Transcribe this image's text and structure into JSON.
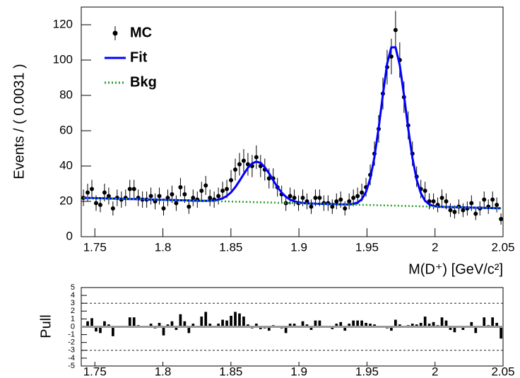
{
  "chart_data": [
    {
      "type": "scatter",
      "y_label": "Events / ( 0.0031 )",
      "x_label": "M(D⁺) [GeV/c²]",
      "xlim": [
        1.74,
        2.05
      ],
      "ylim": [
        0,
        130
      ],
      "xticks": [
        1.75,
        1.8,
        1.85,
        1.9,
        1.95,
        2,
        2.05
      ],
      "yticks": [
        0,
        20,
        40,
        60,
        80,
        100,
        120
      ],
      "legend": "upper left",
      "x": [
        1.7416,
        1.7447,
        1.7478,
        1.7509,
        1.754,
        1.7571,
        1.7602,
        1.7633,
        1.7664,
        1.7695,
        1.7726,
        1.7757,
        1.7788,
        1.7819,
        1.785,
        1.7881,
        1.7912,
        1.7943,
        1.7974,
        1.8005,
        1.8036,
        1.8067,
        1.8098,
        1.8129,
        1.816,
        1.8191,
        1.8222,
        1.8253,
        1.8284,
        1.8315,
        1.8346,
        1.8377,
        1.8408,
        1.8439,
        1.847,
        1.8501,
        1.8532,
        1.8563,
        1.8594,
        1.8625,
        1.8656,
        1.8687,
        1.8718,
        1.8749,
        1.878,
        1.8811,
        1.8842,
        1.8873,
        1.8904,
        1.8935,
        1.8966,
        1.8997,
        1.9028,
        1.9059,
        1.909,
        1.9121,
        1.9152,
        1.9183,
        1.9214,
        1.9245,
        1.9276,
        1.9307,
        1.9338,
        1.9369,
        1.94,
        1.9431,
        1.9462,
        1.9493,
        1.9524,
        1.9555,
        1.9586,
        1.9617,
        1.9648,
        1.9679,
        1.971,
        1.9741,
        1.9772,
        1.9803,
        1.9834,
        1.9865,
        1.9896,
        1.9927,
        1.9958,
        1.9989,
        2.002,
        2.0051,
        2.0082,
        2.0113,
        2.0144,
        2.0175,
        2.0206,
        2.0237,
        2.0268,
        2.0299,
        2.033,
        2.0361,
        2.0392,
        2.0423,
        2.0454,
        2.0485
      ],
      "series": [
        {
          "name": "MC",
          "color": "#000000",
          "style": "points",
          "values": [
            22,
            25,
            27,
            19,
            18,
            25,
            23,
            16,
            22,
            21,
            22,
            27,
            27,
            22,
            21,
            21,
            23,
            20,
            23,
            16,
            22,
            24,
            19,
            28,
            24,
            17,
            22,
            21,
            26,
            29,
            22,
            21,
            23,
            26,
            27,
            32,
            38,
            41,
            43,
            41,
            40,
            45,
            40,
            38,
            33,
            33,
            28,
            24,
            19,
            23,
            22,
            19,
            22,
            20,
            17,
            22,
            22,
            19,
            19,
            17,
            20,
            21,
            16,
            20,
            22,
            23,
            25,
            28,
            35,
            47,
            61,
            81,
            96,
            102,
            117,
            100,
            79,
            63,
            47,
            34,
            27,
            26,
            20,
            20,
            18,
            22,
            20,
            15,
            14,
            17,
            15,
            16,
            19,
            13,
            16,
            21,
            17,
            21,
            18,
            10
          ],
          "errors": [
            4.7,
            5.0,
            5.2,
            4.4,
            4.2,
            5.0,
            4.8,
            4.0,
            4.7,
            4.6,
            4.7,
            5.2,
            5.2,
            4.7,
            4.6,
            4.6,
            4.8,
            4.5,
            4.8,
            4.0,
            4.7,
            4.9,
            4.4,
            5.3,
            4.9,
            4.1,
            4.7,
            4.6,
            5.1,
            5.4,
            4.7,
            4.6,
            4.8,
            5.1,
            5.2,
            5.7,
            6.2,
            6.4,
            6.6,
            6.4,
            6.3,
            6.7,
            6.3,
            6.2,
            5.7,
            5.7,
            5.3,
            4.9,
            4.4,
            4.8,
            4.7,
            4.4,
            4.7,
            4.5,
            4.1,
            4.7,
            4.7,
            4.4,
            4.4,
            4.1,
            4.5,
            4.6,
            4.0,
            4.5,
            4.7,
            4.8,
            5.0,
            5.3,
            5.9,
            6.9,
            7.8,
            9.0,
            9.8,
            10.1,
            10.8,
            10.0,
            8.9,
            7.9,
            6.9,
            5.8,
            5.2,
            5.1,
            4.5,
            4.5,
            4.2,
            4.7,
            4.5,
            3.9,
            3.7,
            4.1,
            3.9,
            4.0,
            4.4,
            3.6,
            4.0,
            4.6,
            4.1,
            4.6,
            4.2,
            3.2
          ]
        },
        {
          "name": "Fit",
          "color": "#0000ff",
          "style": "solid",
          "values": [
            22.0,
            21.9,
            21.9,
            21.8,
            21.8,
            21.7,
            21.6,
            21.6,
            21.5,
            21.5,
            21.4,
            21.3,
            21.3,
            21.2,
            21.2,
            21.1,
            21.0,
            21.0,
            20.9,
            20.9,
            20.8,
            20.7,
            20.7,
            20.6,
            20.6,
            20.5,
            20.4,
            20.4,
            20.3,
            20.3,
            20.4,
            20.5,
            21.0,
            21.7,
            23.1,
            25.1,
            28.0,
            31.6,
            35.4,
            39.0,
            41.5,
            42.5,
            41.8,
            39.3,
            35.9,
            31.9,
            28.1,
            25.0,
            22.6,
            21.0,
            20.0,
            19.4,
            19.1,
            18.8,
            18.8,
            18.7,
            18.6,
            18.6,
            18.5,
            18.5,
            18.4,
            18.3,
            18.3,
            18.2,
            18.6,
            19.3,
            21.2,
            25.4,
            32.9,
            45.2,
            61.7,
            80.4,
            97.9,
            107.2,
            107.2,
            97.1,
            80.1,
            61.2,
            44.6,
            32.3,
            24.6,
            20.3,
            18.3,
            17.4,
            17.0,
            16.9,
            16.8,
            16.8,
            16.7,
            16.7,
            16.6,
            16.5,
            16.5,
            16.4,
            16.4,
            16.3,
            16.2,
            16.2,
            16.1,
            16.1
          ]
        },
        {
          "name": "Bkg",
          "color": "#22a022",
          "style": "dotted",
          "values": [
            22.0,
            21.9,
            21.9,
            21.8,
            21.8,
            21.7,
            21.6,
            21.6,
            21.5,
            21.5,
            21.4,
            21.3,
            21.3,
            21.2,
            21.2,
            21.1,
            21.0,
            21.0,
            20.9,
            20.9,
            20.8,
            20.7,
            20.7,
            20.6,
            20.6,
            20.5,
            20.4,
            20.4,
            20.3,
            20.3,
            20.2,
            20.1,
            20.1,
            20.0,
            20.0,
            19.9,
            19.8,
            19.8,
            19.7,
            19.7,
            19.6,
            19.5,
            19.5,
            19.4,
            19.4,
            19.3,
            19.2,
            19.2,
            19.1,
            19.1,
            19.0,
            18.9,
            18.9,
            18.8,
            18.8,
            18.7,
            18.6,
            18.6,
            18.5,
            18.5,
            18.4,
            18.3,
            18.3,
            18.2,
            18.2,
            18.1,
            18.0,
            18.0,
            17.9,
            17.9,
            17.8,
            17.7,
            17.7,
            17.6,
            17.6,
            17.5,
            17.4,
            17.4,
            17.3,
            17.3,
            17.2,
            17.1,
            17.1,
            17.0,
            17.0,
            16.9,
            16.8,
            16.8,
            16.7,
            16.7,
            16.6,
            16.5,
            16.5,
            16.4,
            16.4,
            16.3,
            16.2,
            16.2,
            16.1,
            16.1
          ]
        }
      ]
    },
    {
      "type": "bar",
      "y_label": "Pull",
      "color": "#000000",
      "xlim": [
        1.74,
        2.05
      ],
      "ylim": [
        -5,
        5
      ],
      "xticks": [
        1.75,
        1.8,
        1.85,
        1.9,
        1.95,
        2,
        2.05
      ],
      "yticks": [
        -5,
        -4,
        -3,
        -2,
        -1,
        0,
        1,
        2,
        3,
        4,
        5
      ],
      "hlines": [
        -3,
        3
      ],
      "x": [
        1.7416,
        1.7447,
        1.7478,
        1.7509,
        1.754,
        1.7571,
        1.7602,
        1.7633,
        1.7664,
        1.7695,
        1.7726,
        1.7757,
        1.7788,
        1.7819,
        1.785,
        1.7881,
        1.7912,
        1.7943,
        1.7974,
        1.8005,
        1.8036,
        1.8067,
        1.8098,
        1.8129,
        1.816,
        1.8191,
        1.8222,
        1.8253,
        1.8284,
        1.8315,
        1.8346,
        1.8377,
        1.8408,
        1.8439,
        1.847,
        1.8501,
        1.8532,
        1.8563,
        1.8594,
        1.8625,
        1.8656,
        1.8687,
        1.8718,
        1.8749,
        1.878,
        1.8811,
        1.8842,
        1.8873,
        1.8904,
        1.8935,
        1.8966,
        1.8997,
        1.9028,
        1.9059,
        1.909,
        1.9121,
        1.9152,
        1.9183,
        1.9214,
        1.9245,
        1.9276,
        1.9307,
        1.9338,
        1.9369,
        1.94,
        1.9431,
        1.9462,
        1.9493,
        1.9524,
        1.9555,
        1.9586,
        1.9617,
        1.9648,
        1.9679,
        1.971,
        1.9741,
        1.9772,
        1.9803,
        1.9834,
        1.9865,
        1.9896,
        1.9927,
        1.9958,
        1.9989,
        2.002,
        2.0051,
        2.0082,
        2.0113,
        2.0144,
        2.0175,
        2.0206,
        2.0237,
        2.0268,
        2.0299,
        2.033,
        2.0361,
        2.0392,
        2.0423,
        2.0454,
        2.0485
      ],
      "values": [
        0.0,
        0.7,
        1.1,
        -0.6,
        -0.8,
        0.7,
        0.3,
        -1.2,
        0.1,
        -0.1,
        0.1,
        1.2,
        1.2,
        0.2,
        0.0,
        0.0,
        0.4,
        -0.2,
        0.5,
        -1.1,
        0.3,
        0.7,
        -0.4,
        1.6,
        0.7,
        -0.8,
        0.4,
        0.1,
        1.3,
        1.9,
        0.4,
        0.1,
        0.4,
        0.9,
        0.8,
        1.4,
        1.9,
        1.7,
        1.3,
        0.3,
        -0.2,
        0.4,
        -0.3,
        -0.2,
        -0.5,
        0.2,
        0.0,
        -0.2,
        -0.8,
        0.4,
        0.4,
        -0.1,
        0.7,
        0.3,
        -0.4,
        0.8,
        0.8,
        0.1,
        0.1,
        -0.3,
        0.4,
        0.6,
        -0.5,
        0.4,
        0.8,
        0.8,
        0.8,
        0.5,
        0.4,
        0.3,
        -0.1,
        0.1,
        -0.2,
        -0.5,
        0.9,
        0.3,
        -0.1,
        0.2,
        0.4,
        0.3,
        0.5,
        1.3,
        0.4,
        0.6,
        0.2,
        1.2,
        0.8,
        -0.4,
        -0.7,
        0.1,
        -0.4,
        -0.1,
        0.6,
        -0.8,
        -0.1,
        1.2,
        0.2,
        1.2,
        0.5,
        -1.5
      ]
    }
  ]
}
